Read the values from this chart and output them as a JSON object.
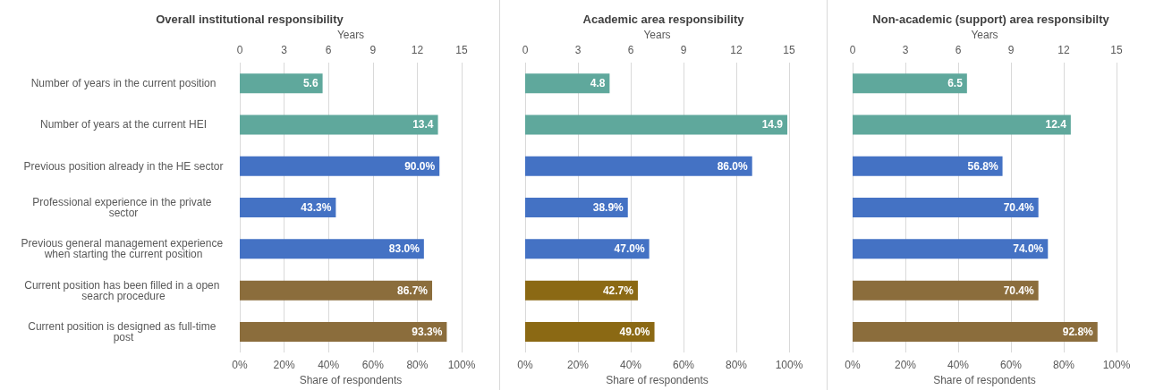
{
  "chart_data": [
    {
      "type": "bar",
      "orientation": "horizontal",
      "title": "Overall institutional responsibility",
      "xlabel": "Share of respondents",
      "x2label": "Years",
      "grid": "x",
      "categories": [
        "Number of years in the current position",
        "Number of years at the current HEI",
        "Previous position already in the HE sector",
        "Professional experience in the private sector",
        "Previous general management experience when starting the current position",
        "Current position has been filled in a open search procedure",
        "Current position is designed as full-time post"
      ],
      "xlim": [
        0,
        100
      ],
      "xticks": [
        {
          "value": 0,
          "label": "0%"
        },
        {
          "value": 20,
          "label": "20%"
        },
        {
          "value": 40,
          "label": "40%"
        },
        {
          "value": 60,
          "label": "60%"
        },
        {
          "value": 80,
          "label": "80%"
        },
        {
          "value": 100,
          "label": "100%"
        }
      ],
      "x2lim": [
        0,
        15
      ],
      "x2ticks": [
        0,
        3,
        6,
        9,
        12,
        15
      ],
      "series": [
        {
          "axis": "x2",
          "color": "#5fa89c",
          "values": [
            5.6,
            13.4,
            null,
            null,
            null,
            null,
            null
          ],
          "value_labels": [
            "5.6",
            "13.4",
            null,
            null,
            null,
            null,
            null
          ]
        },
        {
          "colors": [
            "#4472c4",
            "#4472c4",
            "#4472c4",
            "#4472c4",
            "#4472c4",
            "#8b6d3c",
            "#8b6d3c"
          ],
          "values": [
            null,
            null,
            90.0,
            43.3,
            83.0,
            86.7,
            93.3
          ],
          "value_labels": [
            null,
            null,
            "90.0%",
            "43.3%",
            "83.0%",
            "86.7%",
            "93.3%"
          ]
        }
      ]
    },
    {
      "type": "bar",
      "orientation": "horizontal",
      "title": "Academic area responsibility",
      "xlabel": "Share of respondents",
      "x2label": "Years",
      "grid": "x",
      "categories": [
        null,
        null,
        null,
        null,
        null,
        null,
        null
      ],
      "xlim": [
        0,
        100
      ],
      "xticks": [
        {
          "value": 0,
          "label": "0%"
        },
        {
          "value": 20,
          "label": "20%"
        },
        {
          "value": 40,
          "label": "40%"
        },
        {
          "value": 60,
          "label": "60%"
        },
        {
          "value": 80,
          "label": "80%"
        },
        {
          "value": 100,
          "label": "100%"
        }
      ],
      "x2lim": [
        0,
        15
      ],
      "x2ticks": [
        0,
        3,
        6,
        9,
        12,
        15
      ],
      "series": [
        {
          "axis": "x2",
          "color": "#5fa89c",
          "values": [
            4.8,
            14.9,
            null,
            null,
            null,
            null,
            null
          ],
          "value_labels": [
            "4.8",
            "14.9",
            null,
            null,
            null,
            null,
            null
          ]
        },
        {
          "colors": [
            "#4472c4",
            "#4472c4",
            "#4472c4",
            "#4472c4",
            "#4472c4",
            "#8b6914",
            "#8b6914"
          ],
          "values": [
            null,
            null,
            86.0,
            38.9,
            47.0,
            42.7,
            49.0
          ],
          "value_labels": [
            null,
            null,
            "86.0%",
            "38.9%",
            "47.0%",
            "42.7%",
            "49.0%"
          ]
        }
      ]
    },
    {
      "type": "bar",
      "orientation": "horizontal",
      "title": "Non-academic (support) area responsibilty",
      "xlabel": "Share of respondents",
      "x2label": "Years",
      "grid": "x",
      "categories": [
        null,
        null,
        null,
        null,
        null,
        null,
        null
      ],
      "xlim": [
        0,
        100
      ],
      "xticks": [
        {
          "value": 0,
          "label": "0%"
        },
        {
          "value": 20,
          "label": "20%"
        },
        {
          "value": 40,
          "label": "40%"
        },
        {
          "value": 60,
          "label": "60%"
        },
        {
          "value": 80,
          "label": "80%"
        },
        {
          "value": 100,
          "label": "100%"
        }
      ],
      "x2lim": [
        0,
        15
      ],
      "x2ticks": [
        0,
        3,
        6,
        9,
        12,
        15
      ],
      "series": [
        {
          "axis": "x2",
          "color": "#5fa89c",
          "values": [
            6.5,
            12.4,
            null,
            null,
            null,
            null,
            null
          ],
          "value_labels": [
            "6.5",
            "12.4",
            null,
            null,
            null,
            null,
            null
          ]
        },
        {
          "colors": [
            "#4472c4",
            "#4472c4",
            "#4472c4",
            "#4472c4",
            "#4472c4",
            "#8b6d3c",
            "#8b6d3c"
          ],
          "values": [
            null,
            null,
            56.8,
            70.4,
            74.0,
            70.4,
            92.8
          ],
          "value_labels": [
            null,
            null,
            "56.8%",
            "70.4%",
            "74.0%",
            "70.4%",
            "92.8%"
          ]
        }
      ]
    }
  ]
}
